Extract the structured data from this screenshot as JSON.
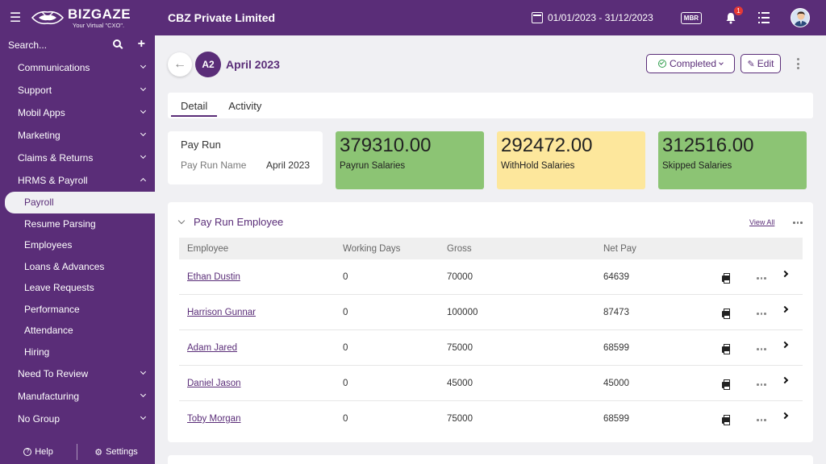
{
  "topbar": {
    "logo_name": "BIZGAZE",
    "logo_tagline": "Your Virtual \"CXO\".",
    "company": "CBZ Private Limited",
    "date_range": "01/01/2023 - 31/12/2023",
    "mbr_label": "MBR",
    "notification_count": "1"
  },
  "sidebar": {
    "search_placeholder": "Search...",
    "items": [
      {
        "label": "Communications"
      },
      {
        "label": "Support"
      },
      {
        "label": "Mobil Apps"
      },
      {
        "label": "Marketing"
      },
      {
        "label": "Claims & Returns"
      },
      {
        "label": "HRMS & Payroll"
      }
    ],
    "sub_items": [
      {
        "label": "Payroll"
      },
      {
        "label": "Resume Parsing"
      },
      {
        "label": "Employees"
      },
      {
        "label": "Loans & Advances"
      },
      {
        "label": "Leave Requests"
      },
      {
        "label": "Performance"
      },
      {
        "label": "Attendance"
      },
      {
        "label": "Hiring"
      }
    ],
    "items_after": [
      {
        "label": "Need To Review"
      },
      {
        "label": "Manufacturing"
      },
      {
        "label": "No Group"
      }
    ],
    "footer": {
      "help": "Help",
      "settings": "Settings"
    }
  },
  "header": {
    "badge": "A2",
    "title": "April 2023",
    "status": "Completed",
    "edit": "Edit"
  },
  "tabs": [
    {
      "label": "Detail"
    },
    {
      "label": "Activity"
    }
  ],
  "payrun_card": {
    "title": "Pay Run",
    "field_label": "Pay Run Name",
    "field_value": "April 2023"
  },
  "stats": [
    {
      "value": "379310.00",
      "label": "Payrun Salaries",
      "color": "#8cc474"
    },
    {
      "value": "292472.00",
      "label": "WithHold Salaries",
      "color": "#fde79c"
    },
    {
      "value": "312516.00",
      "label": "Skipped Salaries",
      "color": "#8cc474"
    }
  ],
  "employee_section": {
    "title": "Pay Run Employee",
    "view_all": "View All",
    "columns": [
      "Employee",
      "Working Days",
      "Gross",
      "Net Pay"
    ],
    "rows": [
      {
        "employee": "Ethan Dustin",
        "working_days": "0",
        "gross": "70000",
        "net_pay": "64639"
      },
      {
        "employee": "Harrison Gunnar",
        "working_days": "0",
        "gross": "100000",
        "net_pay": "87473"
      },
      {
        "employee": "Adam Jared",
        "working_days": "0",
        "gross": "75000",
        "net_pay": "68599"
      },
      {
        "employee": "Daniel Jason",
        "working_days": "0",
        "gross": "45000",
        "net_pay": "45000"
      },
      {
        "employee": "Toby Morgan",
        "working_days": "0",
        "gross": "75000",
        "net_pay": "68599"
      }
    ]
  },
  "colors": {
    "brand": "#5a2d78",
    "green_stat": "#8cc474",
    "yellow_stat": "#fde79c"
  }
}
